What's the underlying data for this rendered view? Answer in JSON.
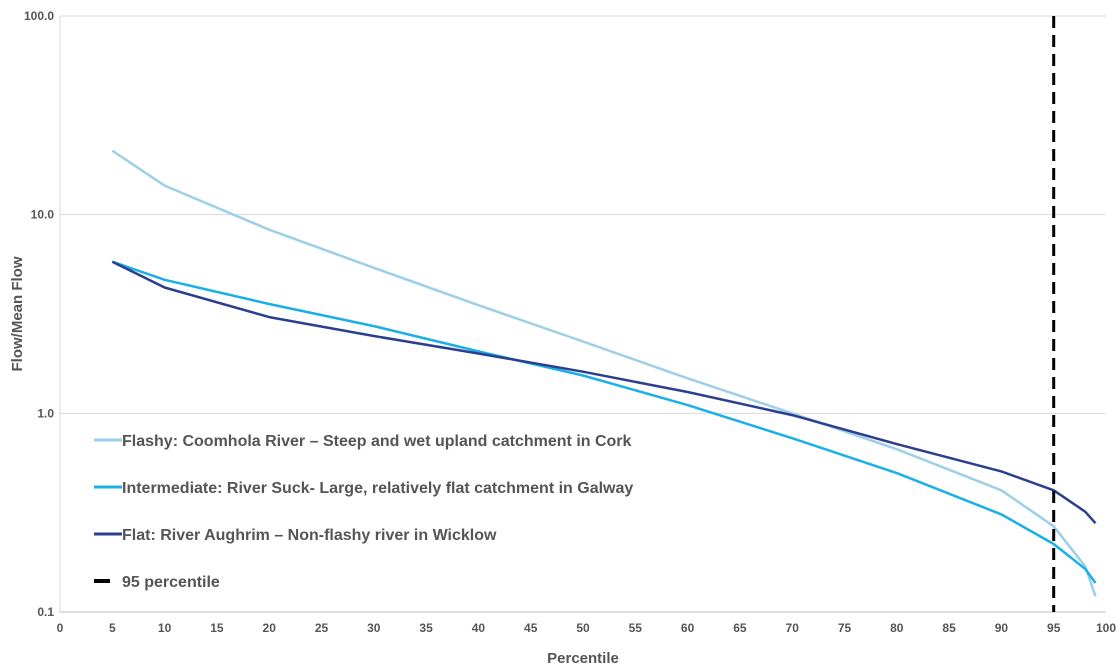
{
  "chart_data": {
    "type": "line",
    "title": "",
    "xlabel": "Percentile",
    "ylabel": "Flow/Mean Flow",
    "xlim": [
      0,
      100
    ],
    "ylim": [
      0.1,
      100
    ],
    "yscale": "log",
    "grid": "horizontal",
    "legend_position": "bottom-left",
    "x_ticks": [
      0,
      5,
      10,
      15,
      20,
      25,
      30,
      35,
      40,
      45,
      50,
      55,
      60,
      65,
      70,
      75,
      80,
      85,
      90,
      95,
      100
    ],
    "x_tick_labels": [
      "0",
      "5",
      "10",
      "15",
      "20",
      "25",
      "30",
      "35",
      "40",
      "45",
      "50",
      "55",
      "60",
      "65",
      "70",
      "75",
      "80",
      "85",
      "90",
      "95",
      "100"
    ],
    "y_ticks": [
      0.1,
      1,
      10,
      100
    ],
    "y_tick_labels": [
      "0.1",
      "1.0",
      "10.0",
      "100.0"
    ],
    "series": [
      {
        "name": "Flashy: Coomhola River – Steep and wet upland catchment in Cork",
        "color": "#9dcfe8",
        "x": [
          5,
          10,
          20,
          30,
          40,
          50,
          60,
          70,
          80,
          90,
          95,
          98,
          99
        ],
        "y": [
          21.0,
          14.0,
          8.4,
          5.4,
          3.5,
          2.3,
          1.5,
          1.0,
          0.66,
          0.41,
          0.27,
          0.17,
          0.12
        ]
      },
      {
        "name": "Intermediate: River Suck- Large, relatively flat catchment in Galway",
        "color": "#1aafe6",
        "x": [
          5,
          10,
          20,
          30,
          40,
          50,
          60,
          70,
          80,
          90,
          95,
          98,
          99
        ],
        "y": [
          5.8,
          4.7,
          3.55,
          2.75,
          2.05,
          1.55,
          1.1,
          0.75,
          0.5,
          0.31,
          0.22,
          0.165,
          0.14
        ]
      },
      {
        "name": "Flat: River Aughrim – Non-flashy river in Wicklow",
        "color": "#2c3e8f",
        "x": [
          5,
          10,
          20,
          30,
          40,
          50,
          60,
          70,
          80,
          90,
          95,
          98,
          99
        ],
        "y": [
          5.8,
          4.3,
          3.05,
          2.45,
          2.0,
          1.62,
          1.28,
          0.98,
          0.7,
          0.51,
          0.41,
          0.32,
          0.28
        ]
      }
    ],
    "reference_lines": [
      {
        "name": "95 percentile",
        "x": 95,
        "color": "#000000",
        "style": "dashed"
      }
    ]
  }
}
